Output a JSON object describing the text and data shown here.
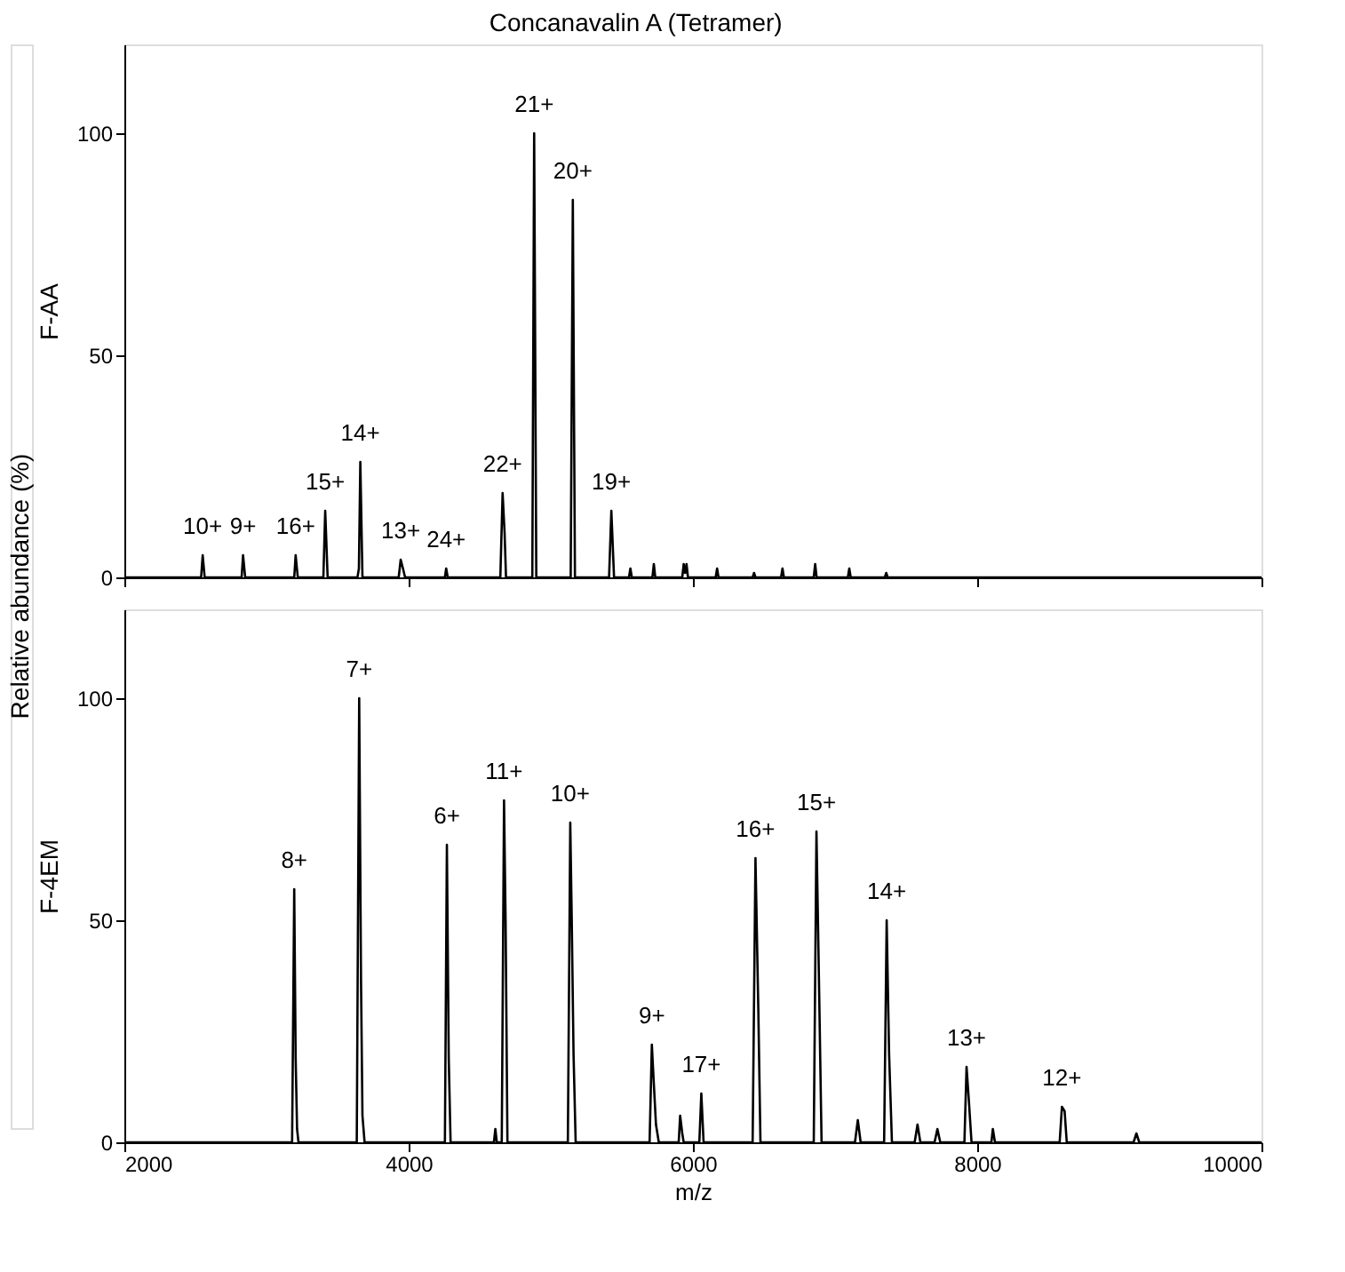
{
  "chart_data": [
    {
      "type": "line",
      "title": "Concanavalin A (Tetramer)",
      "ylabel": "F-AA",
      "tick_labels": "y",
      "grid": false,
      "marker": "none",
      "line_style": "solid",
      "xlim": [
        2000,
        10000
      ],
      "xticks": [
        2000,
        4000,
        6000,
        8000,
        10000
      ],
      "ylim": [
        0,
        120
      ],
      "yticks": [
        0,
        50,
        100
      ],
      "series": [
        {
          "color": "#000000",
          "x": [
            2000,
            2540,
            2551,
            2565,
            2825,
            2835,
            2850,
            3195,
            3205,
            3220,
            3400,
            3413,
            3430,
            3640,
            3650,
            3660,
            3675,
            3930,
            3944,
            3960,
            3975,
            4255,
            4264,
            4275,
            4645,
            4661,
            4675,
            4685,
            4870,
            4883,
            4898,
            5140,
            5155,
            5170,
            5410,
            5426,
            5445,
            5550,
            5560,
            5570,
            5715,
            5725,
            5735,
            5925,
            5935,
            5945,
            5955,
            5965,
            6160,
            6170,
            6180,
            6420,
            6430,
            6440,
            6620,
            6630,
            6640,
            6850,
            6860,
            6870,
            7090,
            7100,
            7110,
            7350,
            7360,
            7370,
            10000
          ],
          "values": [
            0,
            0,
            5,
            0,
            0,
            5,
            0,
            0,
            5,
            0,
            0,
            15,
            0,
            0,
            2,
            26,
            0,
            0,
            4,
            2,
            0,
            0,
            2,
            0,
            0,
            19,
            10,
            0,
            0,
            100,
            0,
            0,
            85,
            0,
            0,
            15,
            0,
            0,
            2,
            0,
            0,
            3,
            0,
            0,
            3,
            1,
            3,
            0,
            0,
            2,
            0,
            0,
            1,
            0,
            0,
            2,
            0,
            0,
            3,
            0,
            0,
            2,
            0,
            0,
            1,
            0,
            0
          ]
        }
      ],
      "annotations": [
        "Relative abundance (%)",
        {
          "text": "10+",
          "x": 2551,
          "y": 5
        },
        {
          "text": "9+",
          "x": 2835,
          "y": 5
        },
        {
          "text": "16+",
          "x": 3205,
          "y": 5
        },
        {
          "text": "15+",
          "x": 3413,
          "y": 15
        },
        {
          "text": "14+",
          "x": 3660,
          "y": 26
        },
        {
          "text": "13+",
          "x": 3944,
          "y": 4
        },
        {
          "text": "24+",
          "x": 4264,
          "y": 2
        },
        {
          "text": "22+",
          "x": 4661,
          "y": 19
        },
        {
          "text": "21+",
          "x": 4883,
          "y": 100
        },
        {
          "text": "20+",
          "x": 5155,
          "y": 85
        },
        {
          "text": "19+",
          "x": 5426,
          "y": 15
        }
      ]
    },
    {
      "type": "line",
      "ylabel": "F-4EM",
      "xlabel": "m/z",
      "grid": false,
      "marker": "none",
      "line_style": "solid",
      "xlim": [
        2000,
        10000
      ],
      "xticks": [
        2000,
        4000,
        6000,
        8000,
        10000
      ],
      "ylim": [
        0,
        120
      ],
      "yticks": [
        0,
        50,
        100
      ],
      "series": [
        {
          "color": "#000000",
          "x": [
            2000,
            3180,
            3195,
            3205,
            3215,
            3225,
            3635,
            3652,
            3665,
            3675,
            3690,
            4255,
            4269,
            4282,
            4295,
            4600,
            4610,
            4620,
            4655,
            4671,
            4682,
            4695,
            5120,
            5137,
            5147,
            5160,
            5175,
            5695,
            5711,
            5722,
            5740,
            5760,
            5900,
            5910,
            5925,
            5935,
            6045,
            6059,
            6075,
            6420,
            6440,
            6460,
            6475,
            6850,
            6869,
            6890,
            6905,
            7140,
            7160,
            7180,
            7345,
            7363,
            7380,
            7400,
            7560,
            7580,
            7600,
            7700,
            7720,
            7740,
            7910,
            7925,
            7940,
            7960,
            8100,
            8110,
            8125,
            8580,
            8596,
            8615,
            8630,
            9100,
            9120,
            9140,
            10000
          ],
          "values": [
            0,
            0,
            57,
            19,
            3,
            0,
            0,
            100,
            36,
            6,
            0,
            0,
            67,
            19,
            0,
            0,
            3,
            0,
            0,
            77,
            50,
            0,
            0,
            72,
            51,
            20,
            0,
            0,
            22,
            15,
            4,
            0,
            0,
            6,
            2,
            0,
            0,
            11,
            0,
            0,
            64,
            30,
            0,
            0,
            70,
            30,
            0,
            0,
            5,
            0,
            0,
            50,
            20,
            0,
            0,
            4,
            0,
            0,
            3,
            0,
            0,
            17,
            10,
            0,
            0,
            3,
            0,
            0,
            8,
            7,
            0,
            0,
            2,
            0,
            0
          ]
        }
      ],
      "annotations": [
        {
          "text": "8+",
          "x": 3195,
          "y": 57
        },
        {
          "text": "7+",
          "x": 3652,
          "y": 100
        },
        {
          "text": "6+",
          "x": 4269,
          "y": 67
        },
        {
          "text": "11+",
          "x": 4671,
          "y": 77
        },
        {
          "text": "10+",
          "x": 5137,
          "y": 72
        },
        {
          "text": "9+",
          "x": 5711,
          "y": 22
        },
        {
          "text": "17+",
          "x": 6059,
          "y": 11
        },
        {
          "text": "16+",
          "x": 6440,
          "y": 64
        },
        {
          "text": "15+",
          "x": 6869,
          "y": 70
        },
        {
          "text": "14+",
          "x": 7363,
          "y": 50
        },
        {
          "text": "13+",
          "x": 7925,
          "y": 17
        },
        {
          "text": "12+",
          "x": 8596,
          "y": 8
        }
      ]
    }
  ]
}
